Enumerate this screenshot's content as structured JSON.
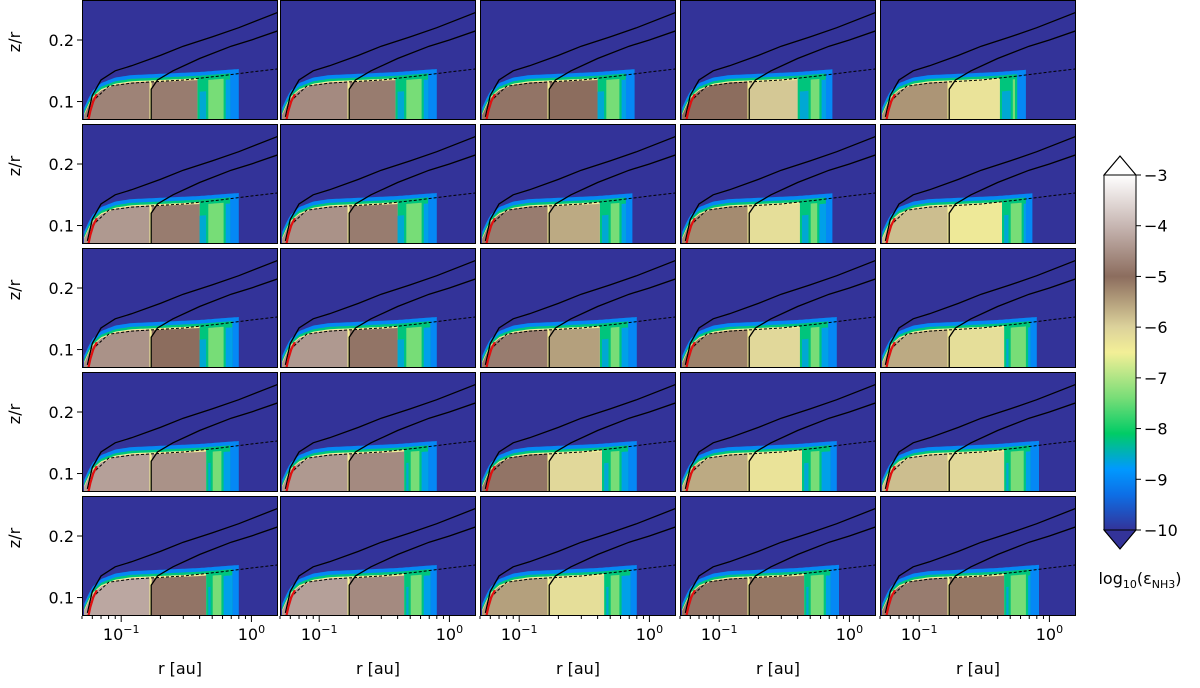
{
  "chart_data": {
    "type": "heatmap",
    "layout": "5x5 grid of panels with shared axes",
    "rows": 5,
    "cols": 5,
    "xlabel": "r [au]",
    "ylabel": "z/r",
    "xscale": "log",
    "xlim": [
      0.05,
      1.6
    ],
    "ylim": [
      0.07,
      0.265
    ],
    "x_ticks": [
      {
        "value": 0.1,
        "base": "10",
        "exp": "−1"
      },
      {
        "value": 1,
        "base": "10",
        "exp": "0"
      }
    ],
    "y_ticks": [
      {
        "value": 0.1,
        "label": "0.1"
      },
      {
        "value": 0.2,
        "label": "0.2"
      }
    ],
    "colorbar": {
      "label_prefix": "log",
      "label_sub1": "10",
      "label_mid": "(ε",
      "label_sub2": "NH3",
      "label_suffix": ")",
      "range": [
        -10,
        -3
      ],
      "extend": "both",
      "colormap": "terrain",
      "ticks": [
        {
          "value": -3,
          "label": "−3"
        },
        {
          "value": -4,
          "label": "−4"
        },
        {
          "value": -5,
          "label": "−5"
        },
        {
          "value": -6,
          "label": "−6"
        },
        {
          "value": -7,
          "label": "−7"
        },
        {
          "value": -8,
          "label": "−8"
        },
        {
          "value": -9,
          "label": "−9"
        },
        {
          "value": -10,
          "label": "−10"
        }
      ],
      "stops": [
        {
          "v": -10,
          "color": "#333399"
        },
        {
          "v": -9.3,
          "color": "#0d6fe6"
        },
        {
          "v": -8.8,
          "color": "#0099ff"
        },
        {
          "v": -8.1,
          "color": "#00cc66"
        },
        {
          "v": -7.4,
          "color": "#77dd77"
        },
        {
          "v": -6.5,
          "color": "#f3ef97"
        },
        {
          "v": -6.0,
          "color": "#dcd29b"
        },
        {
          "v": -5.0,
          "color": "#8c6d5e"
        },
        {
          "v": -4.0,
          "color": "#c7b6b2"
        },
        {
          "v": -3,
          "color": "#ffffff"
        }
      ],
      "over_color": "#ffffff",
      "under_color": "#333399"
    },
    "panels": [
      {
        "row": 0,
        "col": 0,
        "core": -4.7,
        "outer": -4.8,
        "gap": [
          0.39,
          0.45
        ],
        "ring": [
          0.45,
          0.62
        ],
        "edge": 0.7
      },
      {
        "row": 0,
        "col": 1,
        "core": -4.6,
        "outer": -4.8,
        "gap": [
          0.39,
          0.45
        ],
        "ring": [
          0.45,
          0.62
        ],
        "edge": 0.7
      },
      {
        "row": 0,
        "col": 2,
        "core": -4.9,
        "outer": -5.0,
        "gap": [
          0.4,
          0.46
        ],
        "ring": [
          0.46,
          0.6
        ],
        "edge": 0.68
      },
      {
        "row": 0,
        "col": 3,
        "core": -5.0,
        "outer": -5.9,
        "gap": [
          0.41,
          0.5
        ],
        "ring": [
          0.5,
          0.6
        ],
        "edge": 0.66
      },
      {
        "row": 0,
        "col": 4,
        "core": -5.4,
        "outer": -6.3,
        "gap": [
          0.43,
          0.52
        ],
        "ring": [
          0.52,
          0.56
        ],
        "edge": 0.58
      },
      {
        "row": 1,
        "col": 0,
        "core": -4.4,
        "outer": -4.8,
        "gap": [
          0.4,
          0.46
        ],
        "ring": [
          0.46,
          0.62
        ],
        "edge": 0.7
      },
      {
        "row": 1,
        "col": 1,
        "core": -4.5,
        "outer": -4.8,
        "gap": [
          0.4,
          0.46
        ],
        "ring": [
          0.46,
          0.62
        ],
        "edge": 0.7
      },
      {
        "row": 1,
        "col": 2,
        "core": -4.8,
        "outer": -5.6,
        "gap": [
          0.42,
          0.5
        ],
        "ring": [
          0.5,
          0.6
        ],
        "edge": 0.66
      },
      {
        "row": 1,
        "col": 3,
        "core": -5.3,
        "outer": -6.2,
        "gap": [
          0.42,
          0.5
        ],
        "ring": [
          0.5,
          0.58
        ],
        "edge": 0.66
      },
      {
        "row": 1,
        "col": 4,
        "core": -5.8,
        "outer": -6.4,
        "gap": [
          0.44,
          0.5
        ],
        "ring": [
          0.5,
          0.62
        ],
        "edge": 0.66
      },
      {
        "row": 2,
        "col": 0,
        "core": -4.5,
        "outer": -5.0,
        "gap": [
          0.4,
          0.46
        ],
        "ring": [
          0.46,
          0.62
        ],
        "edge": 0.72
      },
      {
        "row": 2,
        "col": 1,
        "core": -4.4,
        "outer": -4.9,
        "gap": [
          0.4,
          0.46
        ],
        "ring": [
          0.46,
          0.62
        ],
        "edge": 0.72
      },
      {
        "row": 2,
        "col": 2,
        "core": -4.8,
        "outer": -5.5,
        "gap": [
          0.42,
          0.5
        ],
        "ring": [
          0.5,
          0.6
        ],
        "edge": 0.7
      },
      {
        "row": 2,
        "col": 3,
        "core": -5.2,
        "outer": -6.1,
        "gap": [
          0.42,
          0.5
        ],
        "ring": [
          0.5,
          0.6
        ],
        "edge": 0.7
      },
      {
        "row": 2,
        "col": 4,
        "core": -5.6,
        "outer": -6.2,
        "gap": [
          0.46,
          0.5
        ],
        "ring": [
          0.5,
          0.66
        ],
        "edge": 0.72
      },
      {
        "row": 3,
        "col": 0,
        "core": -4.3,
        "outer": -4.5,
        "gap": [
          0.46,
          0.5
        ],
        "ring": [
          0.5,
          0.6
        ],
        "edge": 0.7
      },
      {
        "row": 3,
        "col": 1,
        "core": -4.4,
        "outer": -4.6,
        "gap": [
          0.46,
          0.5
        ],
        "ring": [
          0.5,
          0.6
        ],
        "edge": 0.7
      },
      {
        "row": 3,
        "col": 2,
        "core": -4.9,
        "outer": -6.1,
        "gap": [
          0.44,
          0.5
        ],
        "ring": [
          0.5,
          0.6
        ],
        "edge": 0.7
      },
      {
        "row": 3,
        "col": 3,
        "core": -5.6,
        "outer": -6.3,
        "gap": [
          0.44,
          0.5
        ],
        "ring": [
          0.5,
          0.6
        ],
        "edge": 0.72
      },
      {
        "row": 3,
        "col": 4,
        "core": -5.8,
        "outer": -6.1,
        "gap": [
          0.46,
          0.5
        ],
        "ring": [
          0.5,
          0.64
        ],
        "edge": 0.74
      },
      {
        "row": 4,
        "col": 0,
        "core": -4.2,
        "outer": -4.9,
        "gap": [
          0.46,
          0.5
        ],
        "ring": [
          0.5,
          0.6
        ],
        "edge": 0.72
      },
      {
        "row": 4,
        "col": 1,
        "core": -4.3,
        "outer": -4.6,
        "gap": [
          0.46,
          0.5
        ],
        "ring": [
          0.5,
          0.62
        ],
        "edge": 0.72
      },
      {
        "row": 4,
        "col": 2,
        "core": -5.5,
        "outer": -6.2,
        "gap": [
          0.46,
          0.5
        ],
        "ring": [
          0.5,
          0.6
        ],
        "edge": 0.72
      },
      {
        "row": 4,
        "col": 3,
        "core": -4.9,
        "outer": -5.1,
        "gap": [
          0.46,
          0.5
        ],
        "ring": [
          0.5,
          0.64
        ],
        "edge": 0.74
      },
      {
        "row": 4,
        "col": 4,
        "core": -4.8,
        "outer": -5.1,
        "gap": [
          0.46,
          0.5
        ],
        "ring": [
          0.5,
          0.66
        ],
        "edge": 0.74
      }
    ],
    "contours": [
      {
        "type": "solid",
        "points": [
          [
            0.055,
            0.075
          ],
          [
            0.06,
            0.11
          ],
          [
            0.07,
            0.135
          ],
          [
            0.09,
            0.15
          ],
          [
            0.12,
            0.158
          ],
          [
            0.2,
            0.175
          ],
          [
            0.3,
            0.19
          ],
          [
            0.5,
            0.205
          ],
          [
            0.8,
            0.22
          ],
          [
            1.6,
            0.245
          ]
        ]
      },
      {
        "type": "solid",
        "points": [
          [
            0.17,
            0.07
          ],
          [
            0.17,
            0.12
          ],
          [
            0.19,
            0.135
          ],
          [
            0.25,
            0.15
          ],
          [
            0.4,
            0.17
          ],
          [
            0.7,
            0.19
          ],
          [
            1.0,
            0.2
          ],
          [
            1.6,
            0.215
          ]
        ]
      },
      {
        "type": "dashed",
        "points": [
          [
            0.06,
            0.1
          ],
          [
            0.08,
            0.125
          ],
          [
            0.12,
            0.13
          ],
          [
            0.3,
            0.135
          ],
          [
            0.6,
            0.142
          ],
          [
            1.0,
            0.148
          ],
          [
            1.6,
            0.153
          ]
        ]
      },
      {
        "type": "red",
        "points": [
          [
            0.056,
            0.07
          ],
          [
            0.058,
            0.085
          ],
          [
            0.061,
            0.1
          ],
          [
            0.065,
            0.112
          ]
        ]
      }
    ],
    "surface": [
      [
        0.05,
        0.07
      ],
      [
        0.055,
        0.09
      ],
      [
        0.06,
        0.105
      ],
      [
        0.07,
        0.118
      ],
      [
        0.09,
        0.127
      ],
      [
        0.12,
        0.131
      ],
      [
        0.2,
        0.133
      ],
      [
        0.4,
        0.136
      ],
      [
        0.7,
        0.14
      ],
      [
        1.6,
        0.145
      ]
    ]
  }
}
